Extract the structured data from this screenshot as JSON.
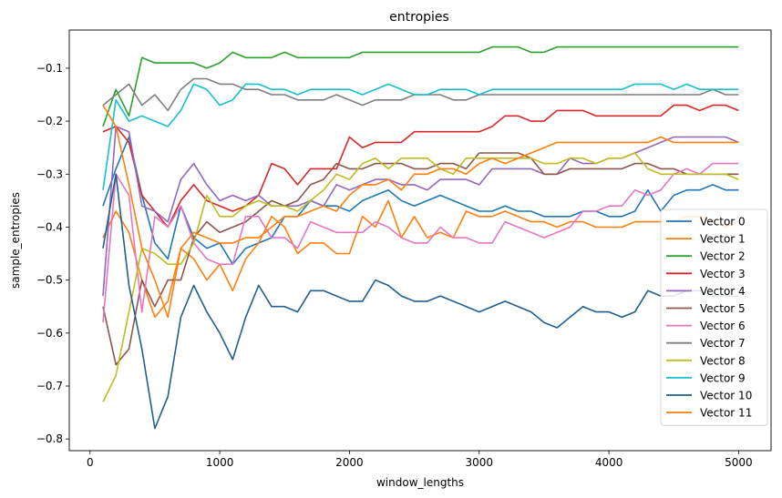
{
  "chart_data": {
    "type": "line",
    "title": "entropies",
    "xlabel": "window_lengths",
    "ylabel": "sample_entropies",
    "xlim": [
      -160,
      5250
    ],
    "ylim": [
      -0.822,
      -0.028
    ],
    "xticks": [
      0,
      1000,
      2000,
      3000,
      4000,
      5000
    ],
    "yticks": [
      -0.8,
      -0.7,
      -0.6,
      -0.5,
      -0.4,
      -0.3,
      -0.2,
      -0.1
    ],
    "xtick_labels": [
      "0",
      "1000",
      "2000",
      "3000",
      "4000",
      "5000"
    ],
    "ytick_labels": [
      "−0.8",
      "−0.7",
      "−0.6",
      "−0.5",
      "−0.4",
      "−0.3",
      "−0.2",
      "−0.1"
    ],
    "grid": false,
    "legend_position": "lower-right",
    "x": [
      100,
      200,
      300,
      400,
      500,
      600,
      700,
      800,
      900,
      1000,
      1100,
      1200,
      1300,
      1400,
      1500,
      1600,
      1700,
      1800,
      1900,
      2000,
      2100,
      2200,
      2300,
      2400,
      2500,
      2600,
      2700,
      2800,
      2900,
      3000,
      3100,
      3200,
      3300,
      3400,
      3500,
      3600,
      3700,
      3800,
      3900,
      4000,
      4100,
      4200,
      4300,
      4400,
      4500,
      4600,
      4700,
      4800,
      4900,
      5000
    ],
    "series": [
      {
        "name": "Vector 0",
        "color": "#1f77b4",
        "values": [
          -0.36,
          -0.29,
          -0.23,
          -0.34,
          -0.43,
          -0.46,
          -0.36,
          -0.42,
          -0.44,
          -0.43,
          -0.47,
          -0.44,
          -0.43,
          -0.42,
          -0.38,
          -0.38,
          -0.35,
          -0.36,
          -0.36,
          -0.37,
          -0.35,
          -0.34,
          -0.33,
          -0.35,
          -0.36,
          -0.35,
          -0.34,
          -0.35,
          -0.36,
          -0.37,
          -0.37,
          -0.36,
          -0.37,
          -0.37,
          -0.38,
          -0.38,
          -0.38,
          -0.37,
          -0.37,
          -0.38,
          -0.38,
          -0.37,
          -0.33,
          -0.37,
          -0.34,
          -0.33,
          -0.33,
          -0.32,
          -0.33,
          -0.33
        ]
      },
      {
        "name": "Vector 1",
        "color": "#ff7f0e",
        "values": [
          -0.42,
          -0.37,
          -0.41,
          -0.5,
          -0.57,
          -0.54,
          -0.44,
          -0.46,
          -0.5,
          -0.47,
          -0.52,
          -0.46,
          -0.43,
          -0.38,
          -0.4,
          -0.45,
          -0.43,
          -0.43,
          -0.45,
          -0.45,
          -0.38,
          -0.4,
          -0.35,
          -0.42,
          -0.38,
          -0.42,
          -0.41,
          -0.42,
          -0.37,
          -0.38,
          -0.38,
          -0.37,
          -0.38,
          -0.39,
          -0.39,
          -0.4,
          -0.39,
          -0.39,
          -0.4,
          -0.4,
          -0.4,
          -0.39,
          -0.39,
          -0.39,
          -0.39,
          -0.38,
          -0.38,
          -0.39,
          -0.4,
          -0.39
        ]
      },
      {
        "name": "Vector 2",
        "color": "#2ca02c",
        "values": [
          -0.21,
          -0.14,
          -0.19,
          -0.08,
          -0.09,
          -0.09,
          -0.09,
          -0.09,
          -0.1,
          -0.09,
          -0.07,
          -0.08,
          -0.08,
          -0.08,
          -0.07,
          -0.08,
          -0.08,
          -0.08,
          -0.08,
          -0.08,
          -0.07,
          -0.07,
          -0.07,
          -0.07,
          -0.07,
          -0.07,
          -0.07,
          -0.07,
          -0.07,
          -0.07,
          -0.06,
          -0.06,
          -0.06,
          -0.07,
          -0.07,
          -0.06,
          -0.06,
          -0.06,
          -0.06,
          -0.06,
          -0.06,
          -0.06,
          -0.06,
          -0.06,
          -0.06,
          -0.06,
          -0.06,
          -0.06,
          -0.06,
          -0.06
        ]
      },
      {
        "name": "Vector 3",
        "color": "#d62728",
        "values": [
          -0.22,
          -0.21,
          -0.24,
          -0.34,
          -0.37,
          -0.4,
          -0.35,
          -0.32,
          -0.35,
          -0.36,
          -0.37,
          -0.36,
          -0.34,
          -0.28,
          -0.29,
          -0.32,
          -0.29,
          -0.29,
          -0.29,
          -0.23,
          -0.25,
          -0.24,
          -0.24,
          -0.24,
          -0.22,
          -0.22,
          -0.22,
          -0.22,
          -0.22,
          -0.22,
          -0.21,
          -0.19,
          -0.19,
          -0.2,
          -0.2,
          -0.18,
          -0.18,
          -0.18,
          -0.19,
          -0.19,
          -0.19,
          -0.19,
          -0.19,
          -0.19,
          -0.17,
          -0.17,
          -0.18,
          -0.17,
          -0.17,
          -0.18
        ]
      },
      {
        "name": "Vector 4",
        "color": "#9467bd",
        "values": [
          -0.53,
          -0.21,
          -0.22,
          -0.36,
          -0.37,
          -0.39,
          -0.31,
          -0.28,
          -0.32,
          -0.35,
          -0.34,
          -0.35,
          -0.34,
          -0.36,
          -0.36,
          -0.36,
          -0.35,
          -0.36,
          -0.32,
          -0.33,
          -0.32,
          -0.31,
          -0.31,
          -0.32,
          -0.32,
          -0.33,
          -0.31,
          -0.31,
          -0.31,
          -0.32,
          -0.29,
          -0.29,
          -0.29,
          -0.29,
          -0.3,
          -0.3,
          -0.27,
          -0.28,
          -0.28,
          -0.27,
          -0.27,
          -0.26,
          -0.25,
          -0.24,
          -0.23,
          -0.23,
          -0.23,
          -0.23,
          -0.23,
          -0.24
        ]
      },
      {
        "name": "Vector 5",
        "color": "#8c564b",
        "values": [
          -0.55,
          -0.66,
          -0.63,
          -0.5,
          -0.55,
          -0.5,
          -0.5,
          -0.42,
          -0.39,
          -0.41,
          -0.4,
          -0.39,
          -0.37,
          -0.35,
          -0.36,
          -0.35,
          -0.32,
          -0.31,
          -0.28,
          -0.29,
          -0.29,
          -0.28,
          -0.28,
          -0.28,
          -0.29,
          -0.29,
          -0.28,
          -0.28,
          -0.29,
          -0.26,
          -0.26,
          -0.26,
          -0.26,
          -0.27,
          -0.3,
          -0.3,
          -0.29,
          -0.29,
          -0.29,
          -0.29,
          -0.29,
          -0.28,
          -0.28,
          -0.29,
          -0.29,
          -0.3,
          -0.3,
          -0.3,
          -0.3,
          -0.3
        ]
      },
      {
        "name": "Vector 6",
        "color": "#e377c2",
        "values": [
          -0.58,
          -0.3,
          -0.34,
          -0.56,
          -0.38,
          -0.4,
          -0.36,
          -0.43,
          -0.46,
          -0.47,
          -0.47,
          -0.38,
          -0.38,
          -0.42,
          -0.42,
          -0.44,
          -0.39,
          -0.4,
          -0.41,
          -0.41,
          -0.41,
          -0.39,
          -0.4,
          -0.42,
          -0.43,
          -0.43,
          -0.4,
          -0.42,
          -0.42,
          -0.43,
          -0.43,
          -0.39,
          -0.4,
          -0.41,
          -0.42,
          -0.41,
          -0.4,
          -0.37,
          -0.37,
          -0.36,
          -0.36,
          -0.33,
          -0.34,
          -0.33,
          -0.3,
          -0.29,
          -0.3,
          -0.28,
          -0.28,
          -0.28
        ]
      },
      {
        "name": "Vector 7",
        "color": "#7f7f7f",
        "values": [
          -0.17,
          -0.15,
          -0.13,
          -0.17,
          -0.15,
          -0.18,
          -0.14,
          -0.12,
          -0.12,
          -0.13,
          -0.13,
          -0.14,
          -0.14,
          -0.15,
          -0.15,
          -0.16,
          -0.16,
          -0.16,
          -0.15,
          -0.16,
          -0.17,
          -0.16,
          -0.16,
          -0.16,
          -0.15,
          -0.15,
          -0.15,
          -0.16,
          -0.16,
          -0.15,
          -0.15,
          -0.15,
          -0.15,
          -0.15,
          -0.15,
          -0.15,
          -0.15,
          -0.15,
          -0.15,
          -0.15,
          -0.15,
          -0.15,
          -0.15,
          -0.15,
          -0.15,
          -0.15,
          -0.15,
          -0.14,
          -0.15,
          -0.15
        ]
      },
      {
        "name": "Vector 8",
        "color": "#bcbd22",
        "values": [
          -0.73,
          -0.68,
          -0.56,
          -0.44,
          -0.45,
          -0.47,
          -0.47,
          -0.43,
          -0.34,
          -0.38,
          -0.38,
          -0.36,
          -0.35,
          -0.36,
          -0.36,
          -0.37,
          -0.35,
          -0.33,
          -0.3,
          -0.31,
          -0.28,
          -0.27,
          -0.29,
          -0.27,
          -0.27,
          -0.27,
          -0.29,
          -0.3,
          -0.27,
          -0.27,
          -0.27,
          -0.27,
          -0.27,
          -0.27,
          -0.28,
          -0.28,
          -0.27,
          -0.27,
          -0.28,
          -0.27,
          -0.27,
          -0.26,
          -0.29,
          -0.3,
          -0.3,
          -0.3,
          -0.3,
          -0.3,
          -0.3,
          -0.31
        ]
      },
      {
        "name": "Vector 9",
        "color": "#17becf",
        "values": [
          -0.33,
          -0.16,
          -0.2,
          -0.19,
          -0.2,
          -0.21,
          -0.18,
          -0.13,
          -0.14,
          -0.17,
          -0.16,
          -0.13,
          -0.13,
          -0.14,
          -0.14,
          -0.15,
          -0.14,
          -0.14,
          -0.14,
          -0.14,
          -0.15,
          -0.14,
          -0.13,
          -0.14,
          -0.15,
          -0.15,
          -0.14,
          -0.14,
          -0.14,
          -0.15,
          -0.14,
          -0.14,
          -0.14,
          -0.14,
          -0.14,
          -0.14,
          -0.14,
          -0.14,
          -0.14,
          -0.14,
          -0.14,
          -0.13,
          -0.13,
          -0.13,
          -0.14,
          -0.13,
          -0.14,
          -0.14,
          -0.14,
          -0.14
        ]
      },
      {
        "name": "Vector 10",
        "color": "#1f5f8f",
        "values": [
          -0.44,
          -0.3,
          -0.51,
          -0.63,
          -0.78,
          -0.72,
          -0.57,
          -0.51,
          -0.56,
          -0.6,
          -0.65,
          -0.57,
          -0.51,
          -0.55,
          -0.55,
          -0.56,
          -0.52,
          -0.52,
          -0.53,
          -0.54,
          -0.54,
          -0.5,
          -0.51,
          -0.53,
          -0.54,
          -0.54,
          -0.53,
          -0.54,
          -0.55,
          -0.56,
          -0.55,
          -0.54,
          -0.55,
          -0.56,
          -0.58,
          -0.59,
          -0.57,
          -0.55,
          -0.56,
          -0.56,
          -0.57,
          -0.56,
          -0.52,
          -0.53,
          -0.53,
          -0.52,
          -0.52,
          -0.53,
          -0.53,
          -0.53
        ]
      },
      {
        "name": "Vector 11",
        "color": "#ff7f0e",
        "values": [
          -0.17,
          -0.21,
          -0.32,
          -0.44,
          -0.5,
          -0.57,
          -0.44,
          -0.41,
          -0.42,
          -0.43,
          -0.43,
          -0.42,
          -0.42,
          -0.4,
          -0.38,
          -0.38,
          -0.37,
          -0.36,
          -0.37,
          -0.34,
          -0.32,
          -0.32,
          -0.31,
          -0.33,
          -0.3,
          -0.3,
          -0.29,
          -0.29,
          -0.3,
          -0.28,
          -0.27,
          -0.28,
          -0.27,
          -0.26,
          -0.25,
          -0.24,
          -0.24,
          -0.24,
          -0.24,
          -0.24,
          -0.24,
          -0.24,
          -0.24,
          -0.23,
          -0.24,
          -0.24,
          -0.24,
          -0.24,
          -0.24,
          -0.24
        ]
      }
    ]
  }
}
